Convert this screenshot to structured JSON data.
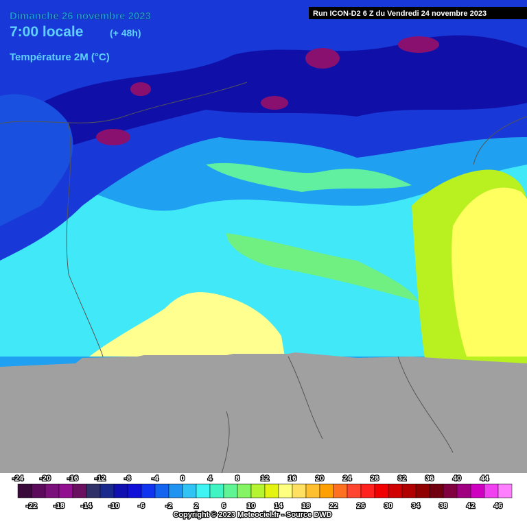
{
  "header": {
    "date": "Dimanche 26 novembre 2023",
    "time": "7:00 locale",
    "lead": "(+ 48h)",
    "variable": "Température 2M (°C)",
    "run": "Run ICON-D2 6 Z du Vendredi 24 novembre 2023"
  },
  "legend": {
    "labels": [
      -24,
      -22,
      -20,
      -18,
      -16,
      -14,
      -12,
      -10,
      -8,
      -6,
      -4,
      -2,
      0,
      2,
      4,
      6,
      8,
      10,
      12,
      14,
      16,
      18,
      20,
      22,
      24,
      26,
      28,
      30,
      32,
      34,
      36,
      38,
      40,
      42,
      44,
      46
    ],
    "colors": [
      "#3a0a3a",
      "#5c0a5c",
      "#7a107a",
      "#901090",
      "#6a1060",
      "#303068",
      "#1a2a8c",
      "#1010b0",
      "#1010d8",
      "#1034f0",
      "#1464f0",
      "#2094f0",
      "#30c4f4",
      "#40f4f4",
      "#40f4c4",
      "#60f494",
      "#84f464",
      "#b4f430",
      "#e4f410",
      "#ffff80",
      "#ffe060",
      "#ffc030",
      "#ffa000",
      "#ff7020",
      "#ff4430",
      "#ff2020",
      "#f00000",
      "#d00000",
      "#b00000",
      "#900000",
      "#700010",
      "#800040",
      "#a00080",
      "#d000c0",
      "#f040f0",
      "#ff80ff"
    ]
  },
  "footer": {
    "copyright": "Copyright © 2023 Meteociel.fr - Source DWD"
  }
}
